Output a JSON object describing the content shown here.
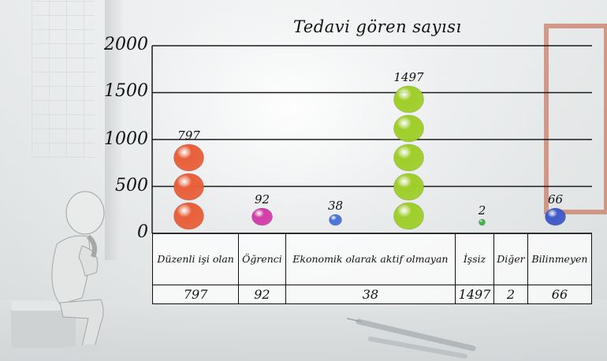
{
  "chart_data": {
    "type": "bar",
    "title": "Tedavi gören sayısı",
    "categories": [
      "Düzenli işi olan",
      "Öğrenci",
      "Ekonomik olarak aktif olmayan",
      "İşsiz",
      "Diğer",
      "Bilinmeyen"
    ],
    "values": [
      797,
      92,
      38,
      1497,
      2,
      66
    ],
    "ylim": [
      0,
      2000
    ],
    "yticks": [
      "0",
      "500",
      "1000",
      "1500",
      "2000"
    ],
    "colors": [
      "#e8603a",
      "#d23ea9",
      "#4a73d8",
      "#9fce2a",
      "#3fae4a",
      "#3e5bc7"
    ],
    "grid": true,
    "legend": "none"
  }
}
